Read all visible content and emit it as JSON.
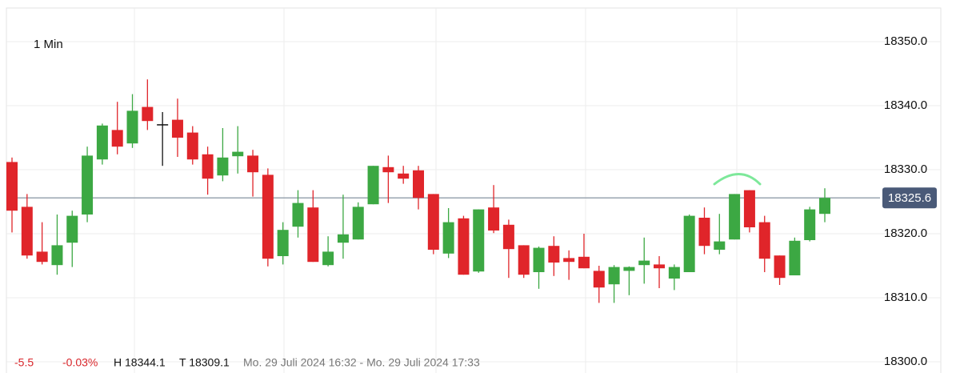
{
  "chart_data": {
    "type": "candlestick",
    "interval": "1 Min",
    "open": [
      18331.2,
      18324.2,
      18317.2,
      18315.1,
      18318.6,
      18323.0,
      18331.6,
      18336.2,
      18334.1,
      18339.8,
      18337.1,
      18337.8,
      18335.8,
      18332.4,
      18329.1,
      18332.1,
      18332.2,
      18329.2,
      18316.5,
      18321.1,
      18324.1,
      18315.1,
      18318.6,
      18319.1,
      18324.6,
      18330.4,
      18329.4,
      18329.9,
      18326.2,
      18316.9,
      18322.4,
      18314.1,
      18324.1,
      18321.4,
      18318.2,
      18314.0,
      18318.1,
      18316.2,
      18316.4,
      18314.2,
      18312.1,
      18314.2,
      18315.1,
      18315.2,
      18313.0,
      18314.0,
      18322.5,
      18317.5,
      18319.1,
      18326.8,
      18321.8,
      18316.6,
      18313.5,
      18319.0,
      18323.1
    ],
    "high": [
      18331.9,
      18326.2,
      18321.8,
      18323.0,
      18323.6,
      18333.6,
      18337.2,
      18340.6,
      18341.8,
      18344.1,
      18339.0,
      18341.1,
      18336.8,
      18333.6,
      18336.5,
      18336.8,
      18333.1,
      18330.2,
      18321.8,
      18326.8,
      18326.8,
      18319.6,
      18326.1,
      18324.9,
      18330.6,
      18332.2,
      18330.6,
      18330.6,
      18326.2,
      18324.0,
      18322.8,
      18323.8,
      18327.6,
      18322.2,
      18318.2,
      18318.0,
      18319.6,
      18317.4,
      18320.0,
      18315.0,
      18315.1,
      18314.9,
      18319.4,
      18316.5,
      18315.2,
      18323.0,
      18324.1,
      18323.1,
      18326.2,
      18326.8,
      18322.8,
      18316.6,
      18319.4,
      18324.2,
      18327.1
    ],
    "low": [
      18320.2,
      18316.1,
      18315.2,
      18313.6,
      18314.8,
      18321.8,
      18330.8,
      18332.4,
      18333.4,
      18336.2,
      18330.6,
      18332.0,
      18330.8,
      18326.1,
      18328.2,
      18329.4,
      18325.8,
      18314.9,
      18315.2,
      18319.4,
      18315.6,
      18314.9,
      18316.1,
      18319.1,
      18324.6,
      18324.8,
      18327.8,
      18323.8,
      18316.8,
      18316.2,
      18313.6,
      18313.9,
      18320.1,
      18313.1,
      18313.1,
      18311.4,
      18313.4,
      18312.8,
      18314.6,
      18309.2,
      18309.2,
      18310.4,
      18312.2,
      18311.5,
      18311.2,
      18314.0,
      18316.8,
      18316.8,
      18319.1,
      18320.2,
      18314.0,
      18312.0,
      18313.5,
      18318.8,
      18321.8
    ],
    "close": [
      18323.6,
      18316.6,
      18315.6,
      18318.2,
      18322.8,
      18332.2,
      18336.9,
      18333.6,
      18339.2,
      18337.6,
      18337.1,
      18335.0,
      18331.6,
      18328.6,
      18331.9,
      18332.8,
      18329.6,
      18316.1,
      18320.6,
      18324.8,
      18315.6,
      18317.2,
      18319.9,
      18324.2,
      18330.6,
      18329.6,
      18328.6,
      18325.6,
      18317.5,
      18321.8,
      18313.6,
      18323.8,
      18320.5,
      18317.6,
      18313.6,
      18317.8,
      18315.5,
      18315.6,
      18314.6,
      18311.6,
      18314.8,
      18314.8,
      18315.8,
      18314.6,
      18314.8,
      18322.8,
      18318.1,
      18318.8,
      18326.2,
      18321.0,
      18316.1,
      18313.1,
      18318.9,
      18323.8,
      18325.6
    ],
    "up_color": "#3ca843",
    "down_color": "#e0252a",
    "flat_color": "#111111",
    "ylim": [
      18298.25,
      18355.25
    ],
    "yticks": [
      {
        "value": 18300,
        "label": "18300.0"
      },
      {
        "value": 18310,
        "label": "18310.0"
      },
      {
        "value": 18320,
        "label": "18320.0"
      },
      {
        "value": 18330,
        "label": "18330.0"
      },
      {
        "value": 18340,
        "label": "18340.0"
      },
      {
        "value": 18350,
        "label": "18350.0"
      }
    ],
    "grid": true,
    "last_price": 18325.6,
    "price_line_color": "#9aa5b1",
    "price_tag_color": "#4a5a78",
    "footer": {
      "change": "-5.5",
      "change_pct": "-0.03%",
      "high": "H 18344.1",
      "low": "T 18309.1",
      "range": "Mo. 29 Juli 2024 16:32 - Mo. 29 Juli 2024 17:33"
    }
  }
}
